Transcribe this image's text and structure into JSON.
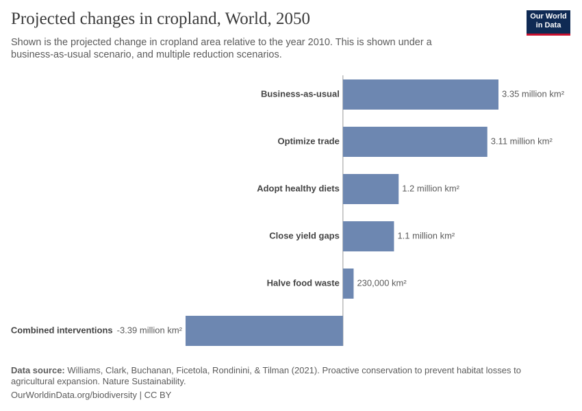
{
  "chart_data": {
    "type": "bar",
    "orientation": "horizontal",
    "title": "Projected changes in cropland, World, 2050",
    "subtitle": "Shown is the projected change in cropland area relative to the year 2010. This is shown under a business-as-usual scenario, and multiple reduction scenarios.",
    "categories": [
      "Business-as-usual",
      "Optimize trade",
      "Adopt healthy diets",
      "Close yield gaps",
      "Halve food waste",
      "Combined interventions"
    ],
    "values": [
      3350000,
      3110000,
      1200000,
      1100000,
      230000,
      -3390000
    ],
    "value_labels": [
      "3.35 million km²",
      "3.11 million km²",
      "1.2 million km²",
      "1.1 million km²",
      "230,000 km²",
      "-3.39 million km²"
    ],
    "color": "#6d87b1"
  },
  "footer": {
    "source_label": "Data source:",
    "source": "Williams, Clark, Buchanan, Ficetola, Rondinini, & Tilman (2021). Proactive conservation to prevent habitat losses to agricultural expansion. Nature Sustainability.",
    "url": "OurWorldinData.org/biodiversity | CC BY"
  },
  "logo": {
    "line1": "Our World",
    "line2": "in Data"
  }
}
